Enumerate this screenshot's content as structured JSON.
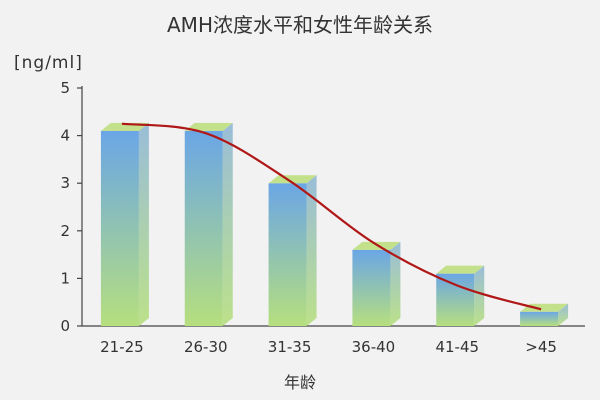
{
  "chart_data": {
    "type": "bar",
    "title": "AMH浓度水平和女性年龄关系",
    "ylabel": "[ng/ml]",
    "xlabel": "年龄",
    "categories": [
      "21-25",
      "26-30",
      "31-35",
      "36-40",
      "41-45",
      ">45"
    ],
    "values": [
      4.1,
      4.1,
      3.0,
      1.6,
      1.1,
      0.3
    ],
    "ylim": [
      0,
      5
    ],
    "yticks": [
      "0",
      "1",
      "2",
      "3",
      "4",
      "5"
    ],
    "trend_line": [
      4.25,
      4.05,
      3.05,
      1.75,
      0.85,
      0.35
    ],
    "grid": false,
    "legend": "none",
    "colors": {
      "bar_top": "#6aa6e6",
      "bar_bottom": "#b6df7e",
      "bar_cap": "#c3e08a",
      "bar_side": "#8fb7d6",
      "trend_line": "#b01818",
      "axis": "#444444"
    }
  }
}
